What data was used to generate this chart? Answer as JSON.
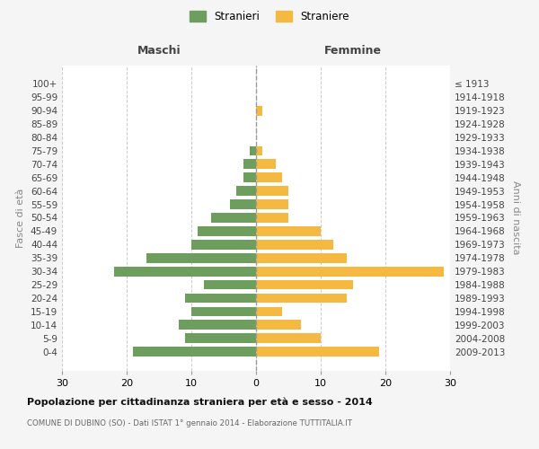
{
  "age_groups": [
    "0-4",
    "5-9",
    "10-14",
    "15-19",
    "20-24",
    "25-29",
    "30-34",
    "35-39",
    "40-44",
    "45-49",
    "50-54",
    "55-59",
    "60-64",
    "65-69",
    "70-74",
    "75-79",
    "80-84",
    "85-89",
    "90-94",
    "95-99",
    "100+"
  ],
  "birth_years": [
    "2009-2013",
    "2004-2008",
    "1999-2003",
    "1994-1998",
    "1989-1993",
    "1984-1988",
    "1979-1983",
    "1974-1978",
    "1969-1973",
    "1964-1968",
    "1959-1963",
    "1954-1958",
    "1949-1953",
    "1944-1948",
    "1939-1943",
    "1934-1938",
    "1929-1933",
    "1924-1928",
    "1919-1923",
    "1914-1918",
    "≤ 1913"
  ],
  "maschi": [
    19,
    11,
    12,
    10,
    11,
    8,
    22,
    17,
    10,
    9,
    7,
    4,
    3,
    2,
    2,
    1,
    0,
    0,
    0,
    0,
    0
  ],
  "femmine": [
    19,
    10,
    7,
    4,
    14,
    15,
    29,
    14,
    12,
    10,
    5,
    5,
    5,
    4,
    3,
    1,
    0,
    0,
    1,
    0,
    0
  ],
  "male_color": "#6d9e5e",
  "female_color": "#f5b942",
  "background_color": "#f5f5f5",
  "plot_bg_color": "#ffffff",
  "grid_color": "#cccccc",
  "title": "Popolazione per cittadinanza straniera per età e sesso - 2014",
  "subtitle": "COMUNE DI DUBINO (SO) - Dati ISTAT 1° gennaio 2014 - Elaborazione TUTTITALIA.IT",
  "ylabel_left": "Fasce di età",
  "ylabel_right": "Anni di nascita",
  "header_left": "Maschi",
  "header_right": "Femmine",
  "legend_stranieri": "Stranieri",
  "legend_straniere": "Straniere",
  "xlim": 30
}
